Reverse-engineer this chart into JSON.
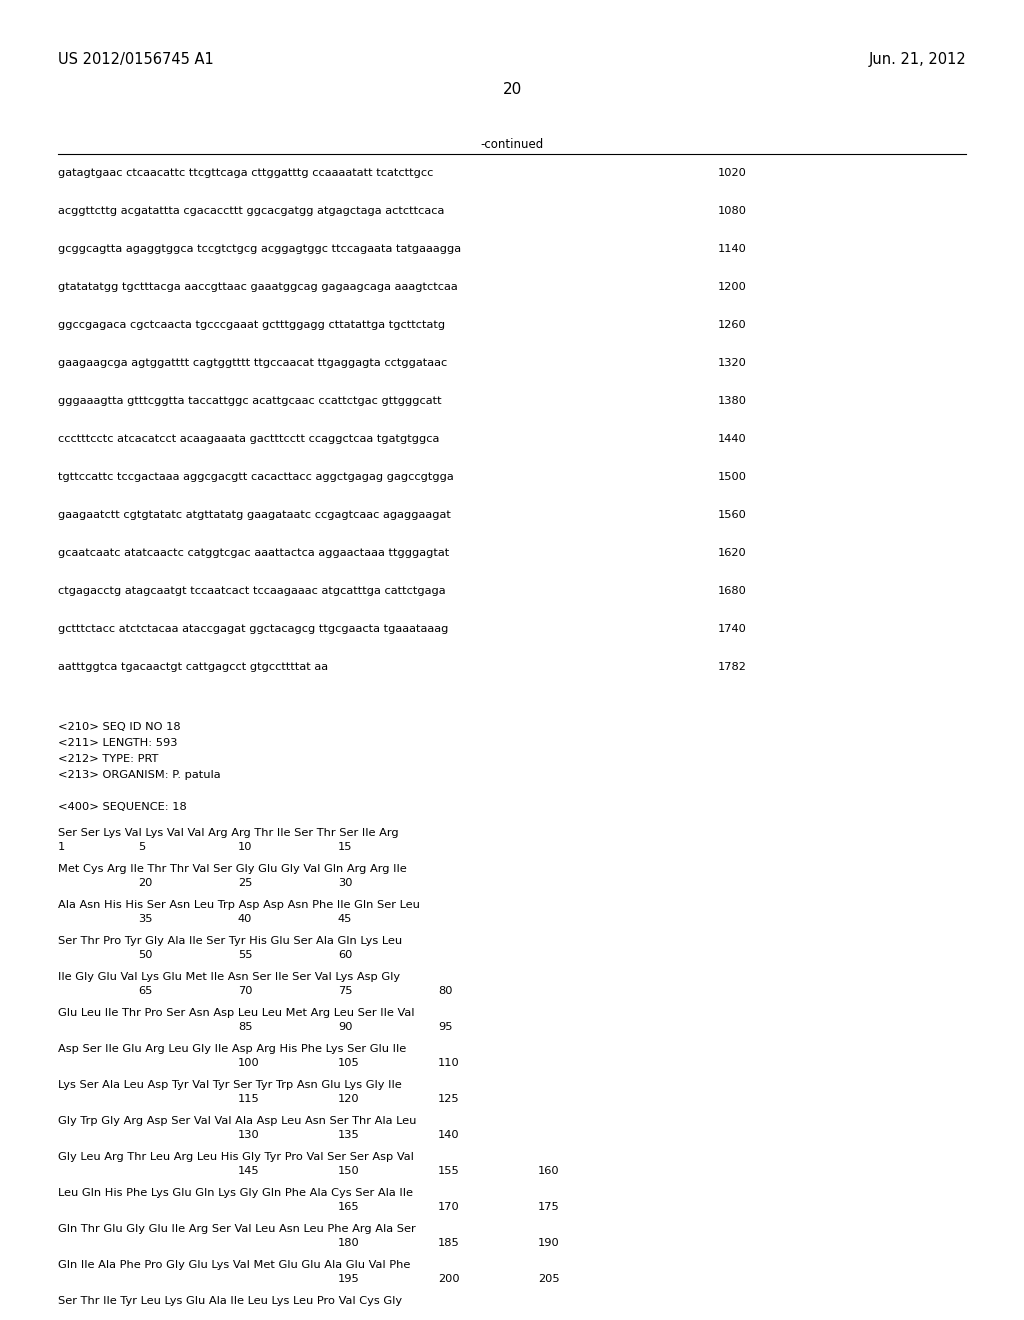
{
  "header_left": "US 2012/0156745 A1",
  "header_right": "Jun. 21, 2012",
  "page_number": "20",
  "continued_label": "-continued",
  "background_color": "#ffffff",
  "text_color": "#000000",
  "font_size_header": 10.5,
  "font_size_body": 9.0,
  "font_size_page": 11,
  "dna_lines": [
    [
      "gatagtgaac ctcaacattc ttcgttcaga cttggatttg ccaaaatatt tcatcttgcc",
      "1020"
    ],
    [
      "acggttcttg acgatattta cgacaccttt ggcacgatgg atgagctaga actcttcaca",
      "1080"
    ],
    [
      "gcggcagtta agaggtggca tccgtctgcg acggagtggc ttccagaata tatgaaagga",
      "1140"
    ],
    [
      "gtatatatgg tgctttacga aaccgttaac gaaatggcag gagaagcaga aaagtctcaa",
      "1200"
    ],
    [
      "ggccgagaca cgctcaacta tgcccgaaat gctttggagg cttatattga tgcttctatg",
      "1260"
    ],
    [
      "gaagaagcga agtggatttt cagtggtttt ttgccaacat ttgaggagta cctggataac",
      "1320"
    ],
    [
      "gggaaagtta gtttcggtta taccattggc acattgcaac ccattctgac gttgggcatt",
      "1380"
    ],
    [
      "ccctttcctc atcacatcct acaagaaata gactttcctt ccaggctcaa tgatgtggca",
      "1440"
    ],
    [
      "tgttccattc tccgactaaa aggcgacgtt cacacttacc aggctgagag gagccgtgga",
      "1500"
    ],
    [
      "gaagaatctt cgtgtatatc atgttatatg gaagataatc ccgagtcaac agaggaagat",
      "1560"
    ],
    [
      "gcaatcaatc atatcaactc catggtcgac aaattactca aggaactaaa ttgggagtat",
      "1620"
    ],
    [
      "ctgagacctg atagcaatgt tccaatcact tccaagaaac atgcatttga cattctgaga",
      "1680"
    ],
    [
      "gctttctacc atctctacaa ataccgagat ggctacagcg ttgcgaacta tgaaataaag",
      "1740"
    ],
    [
      "aatttggtca tgacaactgt cattgagcct gtgccttttat aa",
      "1782"
    ]
  ],
  "metadata_lines": [
    "<210> SEQ ID NO 18",
    "<211> LENGTH: 593",
    "<212> TYPE: PRT",
    "<213> ORGANISM: P. patula"
  ],
  "sequence_label": "<400> SEQUENCE: 18",
  "protein_seqs": [
    "Ser Ser Lys Val Lys Val Val Arg Arg Thr Ile Ser Thr Ser Ile Arg",
    "Met Cys Arg Ile Thr Thr Val Ser Gly Glu Gly Val Gln Arg Arg Ile",
    "Ala Asn His His Ser Asn Leu Trp Asp Asp Asn Phe Ile Gln Ser Leu",
    "Ser Thr Pro Tyr Gly Ala Ile Ser Tyr His Glu Ser Ala Gln Lys Leu",
    "Ile Gly Glu Val Lys Glu Met Ile Asn Ser Ile Ser Val Lys Asp Gly",
    "Glu Leu Ile Thr Pro Ser Asn Asp Leu Leu Met Arg Leu Ser Ile Val",
    "Asp Ser Ile Glu Arg Leu Gly Ile Asp Arg His Phe Lys Ser Glu Ile",
    "Lys Ser Ala Leu Asp Tyr Val Tyr Ser Tyr Trp Asn Glu Lys Gly Ile",
    "Gly Trp Gly Arg Asp Ser Val Val Ala Asp Leu Asn Ser Thr Ala Leu",
    "Gly Leu Arg Thr Leu Arg Leu His Gly Tyr Pro Val Ser Ser Asp Val",
    "Leu Gln His Phe Lys Glu Gln Lys Gly Gln Phe Ala Cys Ser Ala Ile",
    "Gln Thr Glu Gly Glu Ile Arg Ser Val Leu Asn Leu Phe Arg Ala Ser",
    "Gln Ile Ala Phe Pro Gly Glu Lys Val Met Glu Glu Ala Glu Val Phe",
    "Ser Thr Ile Tyr Leu Lys Glu Ala Ile Leu Lys Leu Pro Val Cys Gly"
  ],
  "protein_numbering": [
    [
      "1",
      "5",
      "10",
      "15"
    ],
    [
      "20",
      "25",
      "30"
    ],
    [
      "35",
      "40",
      "45"
    ],
    [
      "50",
      "55",
      "60"
    ],
    [
      "65",
      "70",
      "75",
      "80"
    ],
    [
      "85",
      "90",
      "95"
    ],
    [
      "100",
      "105",
      "110"
    ],
    [
      "115",
      "120",
      "125"
    ],
    [
      "130",
      "135",
      "140"
    ],
    [
      "145",
      "150",
      "155",
      "160"
    ],
    [
      "165",
      "170",
      "175"
    ],
    [
      "180",
      "185",
      "190"
    ],
    [
      "195",
      "200",
      "205"
    ],
    []
  ],
  "line_starts": [
    1,
    16,
    31,
    46,
    61,
    76,
    91,
    106,
    121,
    136,
    151,
    166,
    181,
    196
  ]
}
